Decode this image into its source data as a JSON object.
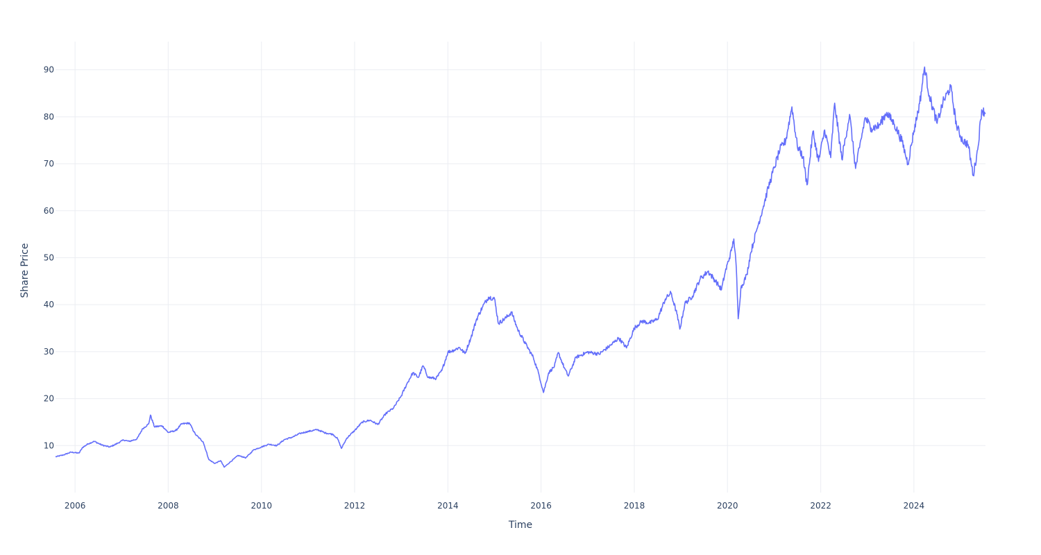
{
  "chart_data": {
    "type": "line",
    "title": "",
    "xlabel": "Time",
    "ylabel": "Share Price",
    "xlim": [
      "2005-08-01",
      "2025-07-15"
    ],
    "ylim": [
      0,
      96
    ],
    "grid": true,
    "x_ticks": [
      "2006",
      "2008",
      "2010",
      "2012",
      "2014",
      "2016",
      "2018",
      "2020",
      "2022",
      "2024"
    ],
    "y_ticks": [
      "10",
      "20",
      "30",
      "40",
      "50",
      "60",
      "70",
      "80",
      "90"
    ],
    "line_color": "#636efa",
    "series": [
      {
        "points": [
          [
            "2005-08-01",
            7.6
          ],
          [
            "2005-10-01",
            8.0
          ],
          [
            "2005-12-01",
            8.6
          ],
          [
            "2006-02-01",
            8.4
          ],
          [
            "2006-03-01",
            9.6
          ],
          [
            "2006-04-15",
            10.4
          ],
          [
            "2006-06-01",
            10.9
          ],
          [
            "2006-08-01",
            10.1
          ],
          [
            "2006-10-01",
            9.7
          ],
          [
            "2006-12-01",
            10.5
          ],
          [
            "2007-01-15",
            11.2
          ],
          [
            "2007-03-01",
            10.9
          ],
          [
            "2007-05-01",
            11.4
          ],
          [
            "2007-06-15",
            13.6
          ],
          [
            "2007-08-01",
            14.6
          ],
          [
            "2007-08-15",
            16.5
          ],
          [
            "2007-09-15",
            14.0
          ],
          [
            "2007-11-15",
            14.2
          ],
          [
            "2008-01-01",
            12.8
          ],
          [
            "2008-03-01",
            13.2
          ],
          [
            "2008-04-15",
            14.6
          ],
          [
            "2008-06-15",
            14.8
          ],
          [
            "2008-08-01",
            12.4
          ],
          [
            "2008-10-01",
            10.8
          ],
          [
            "2008-11-15",
            7.0
          ],
          [
            "2009-01-01",
            6.2
          ],
          [
            "2009-02-15",
            6.8
          ],
          [
            "2009-03-15",
            5.4
          ],
          [
            "2009-05-01",
            6.5
          ],
          [
            "2009-07-01",
            7.9
          ],
          [
            "2009-09-01",
            7.4
          ],
          [
            "2009-11-01",
            9.1
          ],
          [
            "2010-01-01",
            9.7
          ],
          [
            "2010-03-01",
            10.3
          ],
          [
            "2010-05-01",
            10.0
          ],
          [
            "2010-07-01",
            11.3
          ],
          [
            "2010-09-01",
            11.8
          ],
          [
            "2010-11-01",
            12.6
          ],
          [
            "2011-01-01",
            13.0
          ],
          [
            "2011-03-15",
            13.4
          ],
          [
            "2011-05-15",
            12.7
          ],
          [
            "2011-07-15",
            12.4
          ],
          [
            "2011-08-20",
            11.5
          ],
          [
            "2011-09-20",
            9.4
          ],
          [
            "2011-11-01",
            11.6
          ],
          [
            "2012-01-01",
            13.2
          ],
          [
            "2012-03-01",
            15.0
          ],
          [
            "2012-05-01",
            15.4
          ],
          [
            "2012-07-01",
            14.5
          ],
          [
            "2012-09-01",
            16.8
          ],
          [
            "2012-11-01",
            18.0
          ],
          [
            "2013-01-01",
            20.6
          ],
          [
            "2013-02-15",
            23.2
          ],
          [
            "2013-04-01",
            25.5
          ],
          [
            "2013-05-15",
            24.5
          ],
          [
            "2013-06-20",
            27.0
          ],
          [
            "2013-08-01",
            24.5
          ],
          [
            "2013-10-01",
            24.3
          ],
          [
            "2013-11-15",
            26.0
          ],
          [
            "2014-01-01",
            29.9
          ],
          [
            "2014-02-15",
            30.3
          ],
          [
            "2014-04-01",
            30.9
          ],
          [
            "2014-05-15",
            29.6
          ],
          [
            "2014-07-01",
            33.0
          ],
          [
            "2014-08-15",
            37.0
          ],
          [
            "2014-10-01",
            39.6
          ],
          [
            "2014-11-15",
            41.6
          ],
          [
            "2015-01-01",
            41.3
          ],
          [
            "2015-02-01",
            36.0
          ],
          [
            "2015-04-01",
            37.2
          ],
          [
            "2015-05-15",
            38.4
          ],
          [
            "2015-07-01",
            34.8
          ],
          [
            "2015-09-01",
            31.7
          ],
          [
            "2015-11-01",
            28.8
          ],
          [
            "2015-12-15",
            25.2
          ],
          [
            "2016-01-20",
            21.3
          ],
          [
            "2016-03-01",
            25.5
          ],
          [
            "2016-04-15",
            26.9
          ],
          [
            "2016-05-15",
            29.8
          ],
          [
            "2016-07-01",
            26.6
          ],
          [
            "2016-08-01",
            24.8
          ],
          [
            "2016-10-01",
            28.8
          ],
          [
            "2017-01-01",
            29.9
          ],
          [
            "2017-04-01",
            29.5
          ],
          [
            "2017-07-01",
            31.4
          ],
          [
            "2017-09-01",
            32.9
          ],
          [
            "2017-11-01",
            30.8
          ],
          [
            "2018-01-01",
            35.0
          ],
          [
            "2018-03-01",
            36.5
          ],
          [
            "2018-05-01",
            36.1
          ],
          [
            "2018-07-01",
            36.9
          ],
          [
            "2018-09-01",
            41.2
          ],
          [
            "2018-10-15",
            42.5
          ],
          [
            "2018-12-01",
            38.0
          ],
          [
            "2018-12-24",
            34.8
          ],
          [
            "2019-02-01",
            40.2
          ],
          [
            "2019-04-01",
            41.8
          ],
          [
            "2019-06-01",
            45.5
          ],
          [
            "2019-08-01",
            47.1
          ],
          [
            "2019-10-01",
            45.0
          ],
          [
            "2019-11-15",
            43.2
          ],
          [
            "2019-12-15",
            47.0
          ],
          [
            "2020-02-01",
            51.5
          ],
          [
            "2020-02-20",
            54.0
          ],
          [
            "2020-03-10",
            48.0
          ],
          [
            "2020-03-25",
            37.0
          ],
          [
            "2020-04-15",
            43.5
          ],
          [
            "2020-06-01",
            46.4
          ],
          [
            "2020-07-01",
            51.0
          ],
          [
            "2020-08-15",
            55.7
          ],
          [
            "2020-10-01",
            60.2
          ],
          [
            "2020-11-15",
            64.8
          ],
          [
            "2021-01-01",
            69.1
          ],
          [
            "2021-02-15",
            73.0
          ],
          [
            "2021-04-01",
            74.9
          ],
          [
            "2021-05-20",
            82.1
          ],
          [
            "2021-07-01",
            73.8
          ],
          [
            "2021-08-15",
            71.5
          ],
          [
            "2021-09-15",
            65.5
          ],
          [
            "2021-11-01",
            76.9
          ],
          [
            "2021-12-15",
            70.5
          ],
          [
            "2022-02-01",
            77.2
          ],
          [
            "2022-03-20",
            71.3
          ],
          [
            "2022-04-20",
            82.9
          ],
          [
            "2022-06-15",
            71.0
          ],
          [
            "2022-08-15",
            80.5
          ],
          [
            "2022-10-01",
            69.0
          ],
          [
            "2022-11-01",
            73.4
          ],
          [
            "2022-12-15",
            79.8
          ],
          [
            "2023-02-01",
            77.6
          ],
          [
            "2023-04-01",
            78.0
          ],
          [
            "2023-06-01",
            80.9
          ],
          [
            "2023-08-01",
            78.4
          ],
          [
            "2023-10-01",
            74.7
          ],
          [
            "2023-11-15",
            70.0
          ],
          [
            "2024-01-01",
            77.0
          ],
          [
            "2024-02-15",
            82.8
          ],
          [
            "2024-03-25",
            90.6
          ],
          [
            "2024-05-01",
            84.5
          ],
          [
            "2024-07-01",
            78.6
          ],
          [
            "2024-08-15",
            83.0
          ],
          [
            "2024-10-15",
            86.4
          ],
          [
            "2024-12-01",
            78.0
          ],
          [
            "2025-01-15",
            75.0
          ],
          [
            "2025-03-01",
            74.1
          ],
          [
            "2025-04-10",
            67.5
          ],
          [
            "2025-05-15",
            73.0
          ],
          [
            "2025-06-15",
            81.5
          ],
          [
            "2025-07-15",
            80.8
          ]
        ]
      }
    ]
  }
}
